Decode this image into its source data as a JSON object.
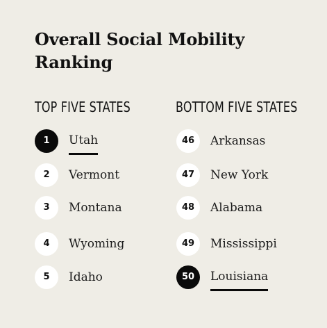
{
  "title_line1": "Overall Social Mobility",
  "title_line2": "Ranking",
  "top": {
    "heading": "TOP FIVE STATES",
    "items": [
      {
        "rank": "1",
        "state": "Utah"
      },
      {
        "rank": "2",
        "state": "Vermont"
      },
      {
        "rank": "3",
        "state": "Montana"
      },
      {
        "rank": "4",
        "state": "Wyoming"
      },
      {
        "rank": "5",
        "state": "Idaho"
      }
    ]
  },
  "bottom": {
    "heading": "BOTTOM FIVE STATES",
    "items": [
      {
        "rank": "46",
        "state": "Arkansas"
      },
      {
        "rank": "47",
        "state": "New York"
      },
      {
        "rank": "48",
        "state": "Alabama"
      },
      {
        "rank": "49",
        "state": "Mississippi"
      },
      {
        "rank": "50",
        "state": "Louisiana"
      }
    ]
  },
  "colors": {
    "background": "#efede6",
    "badge": "#ffffff",
    "highlight": "#0a0a0a"
  }
}
